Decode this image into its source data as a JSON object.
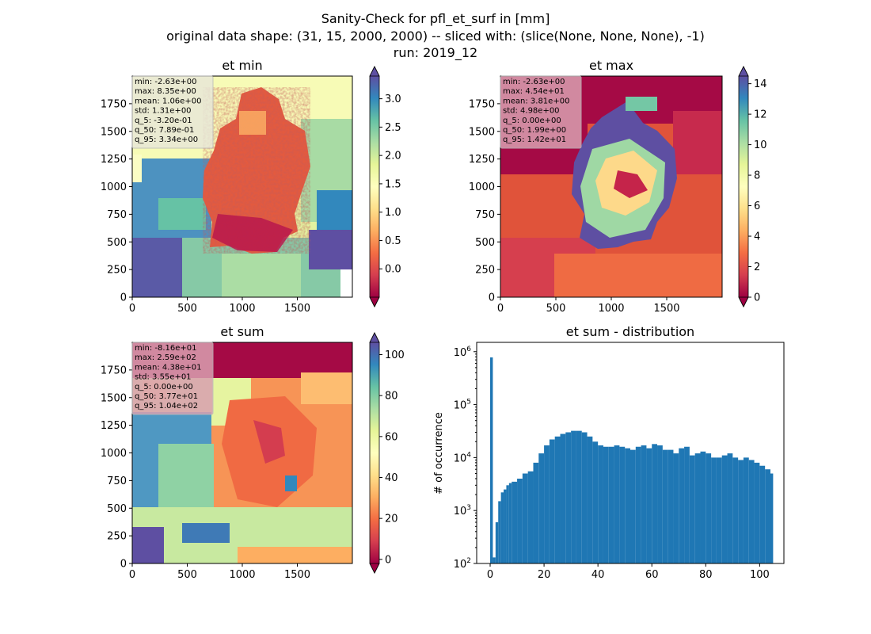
{
  "figure": {
    "title_lines": [
      "Sanity-Check for pfl_et_surf in [mm]",
      "original data shape: (31, 15, 2000, 2000) -- sliced with: (slice(None, None, None), -1)",
      "run: 2019_12"
    ]
  },
  "chart_data": [
    {
      "type": "heatmap",
      "title": "et min",
      "xlim": [
        0,
        2000
      ],
      "ylim": [
        0,
        2000
      ],
      "x_ticks": [
        "0",
        "500",
        "1000",
        "1500"
      ],
      "y_ticks": [
        "0",
        "250",
        "500",
        "750",
        "1000",
        "1250",
        "1500",
        "1750"
      ],
      "colormap": "Spectral",
      "colorbar": {
        "vmin": -0.5,
        "vmax": 3.4,
        "extend": "both",
        "ticks": [
          "0.0",
          "0.5",
          "1.0",
          "1.5",
          "2.0",
          "2.5",
          "3.0"
        ]
      },
      "stats": [
        "min: -2.63e+00",
        "max: 8.35e+00",
        "mean: 1.06e+00",
        "std: 1.31e+00",
        "q_5: -3.20e-01",
        "q_50: 7.89e-01",
        "q_95: 3.34e+00"
      ],
      "stats_box_color": "#e8e8d8"
    },
    {
      "type": "heatmap",
      "title": "et max",
      "xlim": [
        0,
        2000
      ],
      "ylim": [
        0,
        2000
      ],
      "x_ticks": [
        "0",
        "500",
        "1000",
        "1500"
      ],
      "y_ticks": [
        "0",
        "250",
        "500",
        "750",
        "1000",
        "1250",
        "1500",
        "1750"
      ],
      "colormap": "Spectral",
      "colorbar": {
        "vmin": 0,
        "vmax": 14.5,
        "extend": "both",
        "ticks": [
          "0",
          "2",
          "4",
          "6",
          "8",
          "10",
          "12",
          "14"
        ]
      },
      "stats": [
        "min: -2.63e+00",
        "max: 4.54e+01",
        "mean: 3.81e+00",
        "std: 4.98e+00",
        "q_5: 0.00e+00",
        "q_50: 1.99e+00",
        "q_95: 1.42e+01"
      ],
      "stats_box_color": "#d9a0b0"
    },
    {
      "type": "heatmap",
      "title": "et sum",
      "xlim": [
        0,
        2000
      ],
      "ylim": [
        0,
        2000
      ],
      "x_ticks": [
        "0",
        "500",
        "1000",
        "1500"
      ],
      "y_ticks": [
        "0",
        "250",
        "500",
        "750",
        "1000",
        "1250",
        "1500",
        "1750"
      ],
      "colormap": "Spectral",
      "colorbar": {
        "vmin": -2,
        "vmax": 106,
        "extend": "both",
        "ticks": [
          "0",
          "20",
          "40",
          "60",
          "80",
          "100"
        ]
      },
      "stats": [
        "min: -8.16e+01",
        "max: 2.59e+02",
        "mean: 4.38e+01",
        "std: 3.55e+01",
        "q_5: 0.00e+00",
        "q_50: 3.77e+01",
        "q_95: 1.04e+02"
      ],
      "stats_box_color": "#d9a0b0"
    },
    {
      "type": "bar",
      "title": "et sum - distribution",
      "ylabel": "# of occurrence",
      "yscale": "log",
      "xlim": [
        -5,
        109
      ],
      "ylim": [
        100,
        1500000
      ],
      "x_ticks": [
        0,
        20,
        40,
        60,
        80,
        100
      ],
      "y_ticks": [
        {
          "value": 100,
          "label": "10",
          "exp": "2"
        },
        {
          "value": 1000,
          "label": "10",
          "exp": "3"
        },
        {
          "value": 10000,
          "label": "10",
          "exp": "4"
        },
        {
          "value": 100000,
          "label": "10",
          "exp": "5"
        },
        {
          "value": 1000000,
          "label": "10",
          "exp": "6"
        }
      ],
      "bar_color": "#1f77b4",
      "bins": {
        "x": [
          0,
          1,
          2,
          3,
          4,
          5,
          6,
          7,
          8,
          10,
          12,
          14,
          16,
          18,
          20,
          22,
          24,
          26,
          28,
          30,
          32,
          34,
          36,
          38,
          40,
          42,
          44,
          46,
          48,
          50,
          52,
          54,
          56,
          58,
          60,
          62,
          64,
          66,
          68,
          70,
          72,
          74,
          76,
          78,
          80,
          82,
          84,
          86,
          88,
          90,
          92,
          94,
          96,
          98,
          100,
          102,
          104
        ],
        "y": [
          780000,
          130,
          600,
          1500,
          2200,
          2500,
          3000,
          3300,
          3500,
          4000,
          5000,
          5500,
          8000,
          12000,
          17000,
          22000,
          25000,
          28000,
          30000,
          32000,
          32000,
          30000,
          25000,
          20000,
          17000,
          16000,
          16000,
          17000,
          16000,
          15000,
          14000,
          16000,
          17000,
          15000,
          18000,
          17000,
          14000,
          14000,
          12000,
          15000,
          16000,
          11000,
          12000,
          13000,
          12000,
          10000,
          10000,
          11000,
          12000,
          10000,
          9000,
          10000,
          9000,
          8000,
          7000,
          6000,
          5000
        ]
      }
    }
  ]
}
